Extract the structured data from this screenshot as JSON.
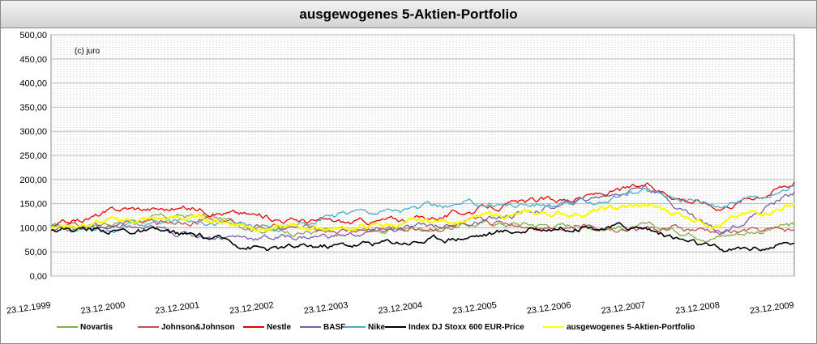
{
  "chart_data": {
    "type": "line",
    "title": "ausgewogenes 5-Aktien-Portfolio",
    "annotation": "(c) juro",
    "x_ticks": [
      "23.12.1999",
      "23.12.2000",
      "23.12.2001",
      "23.12.2002",
      "23.12.2003",
      "23.12.2004",
      "23.12.2005",
      "23.12.2006",
      "23.12.2007",
      "23.12.2008",
      "23.12.2009"
    ],
    "y_ticks": [
      "0,00",
      "50,00",
      "100,00",
      "150,00",
      "200,00",
      "250,00",
      "300,00",
      "350,00",
      "400,00",
      "450,00",
      "500,00"
    ],
    "ylim": [
      0,
      500
    ],
    "grid": true,
    "legend_position": "bottom",
    "series": [
      {
        "name": "Novartis",
        "color": "#7fae4b",
        "x": [
          "23.12.1999",
          "23.12.2000",
          "23.12.2001",
          "23.12.2002",
          "23.12.2003",
          "23.12.2004",
          "23.12.2005",
          "23.12.2006",
          "23.12.2007",
          "23.12.2008",
          "23.12.2009"
        ],
        "values": [
          100,
          115,
          125,
          95,
          90,
          100,
          110,
          105,
          100,
          85,
          105
        ]
      },
      {
        "name": "Johnson&Johnson",
        "color": "#c0504d",
        "x": [
          "23.12.1999",
          "23.12.2000",
          "23.12.2001",
          "23.12.2002",
          "23.12.2003",
          "23.12.2004",
          "23.12.2005",
          "23.12.2006",
          "23.12.2007",
          "23.12.2008",
          "23.12.2009"
        ],
        "values": [
          100,
          105,
          120,
          100,
          95,
          100,
          110,
          105,
          100,
          90,
          95
        ]
      },
      {
        "name": "Nestle",
        "color": "#e00000",
        "x": [
          "23.12.1999",
          "23.12.2000",
          "23.12.2001",
          "23.12.2002",
          "23.12.2003",
          "23.12.2004",
          "23.12.2005",
          "23.12.2006",
          "23.12.2007",
          "23.12.2008",
          "23.12.2009"
        ],
        "values": [
          100,
          140,
          140,
          120,
          110,
          120,
          145,
          160,
          185,
          145,
          195
        ]
      },
      {
        "name": "BASF",
        "color": "#7460a6",
        "x": [
          "23.12.1999",
          "23.12.2000",
          "23.12.2001",
          "23.12.2002",
          "23.12.2003",
          "23.12.2004",
          "23.12.2005",
          "23.12.2006",
          "23.12.2007",
          "23.12.2008",
          "23.12.2009"
        ],
        "values": [
          100,
          100,
          85,
          80,
          85,
          100,
          120,
          150,
          190,
          90,
          175
        ]
      },
      {
        "name": "Nike",
        "color": "#4bacc6",
        "x": [
          "23.12.1999",
          "23.12.2000",
          "23.12.2001",
          "23.12.2002",
          "23.12.2003",
          "23.12.2004",
          "23.12.2005",
          "23.12.2006",
          "23.12.2007",
          "23.12.2008",
          "23.12.2009"
        ],
        "values": [
          100,
          100,
          120,
          95,
          135,
          140,
          150,
          145,
          175,
          150,
          185
        ]
      },
      {
        "name": "Index DJ Stoxx 600 EUR-Price",
        "color": "#000000",
        "x": [
          "23.12.1999",
          "23.12.2000",
          "23.12.2001",
          "23.12.2002",
          "23.12.2003",
          "23.12.2004",
          "23.12.2005",
          "23.12.2006",
          "23.12.2007",
          "23.12.2008",
          "23.12.2009"
        ],
        "values": [
          100,
          95,
          80,
          55,
          65,
          75,
          90,
          105,
          100,
          50,
          68
        ]
      },
      {
        "name": "ausgewogenes 5-Aktien-Portfolio",
        "color": "#ffff00",
        "x": [
          "23.12.1999",
          "23.12.2000",
          "23.12.2001",
          "23.12.2002",
          "23.12.2003",
          "23.12.2004",
          "23.12.2005",
          "23.12.2006",
          "23.12.2007",
          "23.12.2008",
          "23.12.2009"
        ],
        "values": [
          100,
          115,
          120,
          100,
          100,
          110,
          125,
          130,
          145,
          110,
          150
        ]
      }
    ]
  }
}
